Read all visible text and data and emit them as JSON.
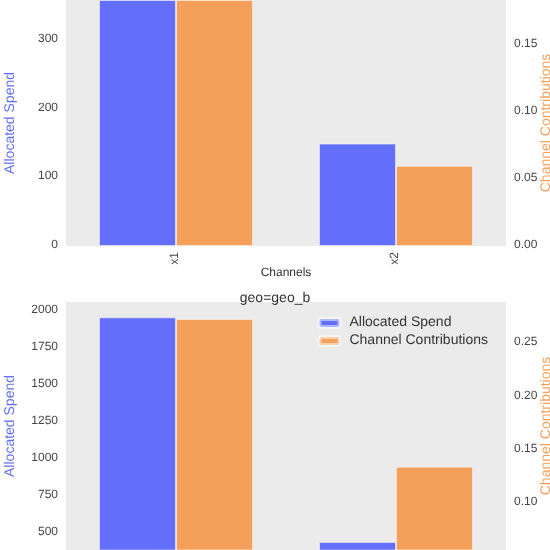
{
  "chart_data": [
    {
      "type": "bar",
      "categories": [
        "x1",
        "x2"
      ],
      "xlabel": "Channels",
      "ylabel": "Allocated Spend",
      "y2label": "Channel Contributions",
      "ylim": [
        0,
        358
      ],
      "yticks": [
        0,
        100,
        200,
        300
      ],
      "y2lim": [
        0,
        0.184
      ],
      "y2ticks": [
        {
          "value": 0,
          "label": "0.00"
        },
        {
          "value": 0.05,
          "label": "0.05"
        },
        {
          "value": 0.1,
          "label": "0.10"
        },
        {
          "value": 0.15,
          "label": "0.15"
        }
      ],
      "grid": false,
      "legend": false,
      "series": [
        {
          "color": "#636efa",
          "values": [
            358,
            149
          ]
        },
        {
          "color": "#f4a05a",
          "axis": "y2",
          "values": [
            0.184,
            0.06
          ]
        }
      ]
    },
    {
      "type": "bar",
      "title": "geo=geo_b",
      "categories": [
        null,
        null
      ],
      "ylabel": "Allocated Spend",
      "y2label": "Channel Contributions",
      "ylim": [
        385,
        2064
      ],
      "yticks": [
        500,
        750,
        1000,
        1250,
        1500,
        1750,
        2000
      ],
      "y2lim": [
        0.0555,
        0.289
      ],
      "y2ticks": [
        {
          "value": 0.1,
          "label": "0.10"
        },
        {
          "value": 0.15,
          "label": "0.15"
        },
        {
          "value": 0.2,
          "label": "0.20"
        },
        {
          "value": 0.25,
          "label": "0.25"
        }
      ],
      "grid": false,
      "legend": "top right",
      "series": [
        {
          "name": "Allocated Spend",
          "color": "#636efa",
          "values": [
            1960,
            440
          ]
        },
        {
          "name": "Channel Contributions",
          "color": "#f4a05a",
          "axis": "y2",
          "values": [
            0.273,
            0.134
          ]
        }
      ]
    }
  ]
}
